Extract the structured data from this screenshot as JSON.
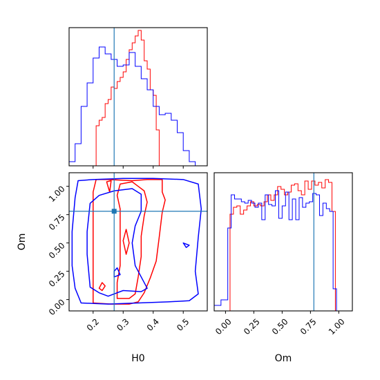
{
  "chart_data": {
    "type": "corner",
    "parameters": [
      "H0",
      "Om"
    ],
    "xlabel_H0": "H0",
    "xlabel_Om": "Om",
    "ylabel_Om": "Om",
    "truth": {
      "H0": 0.27,
      "Om": 0.78,
      "color": "#1f77b4"
    },
    "series": [
      {
        "color": "#ff0000"
      },
      {
        "color": "#0000ff"
      }
    ],
    "axes": {
      "H0": {
        "range": [
          0.12,
          0.58
        ],
        "ticks": [
          0.2,
          0.3,
          0.4,
          0.5
        ],
        "tick_labels": [
          "0.2",
          "0.3",
          "0.4",
          "0.5"
        ]
      },
      "Om_y": {
        "range": [
          -0.1,
          1.12
        ],
        "ticks": [
          0.0,
          0.25,
          0.5,
          0.75,
          1.0
        ],
        "tick_labels": [
          "0.00",
          "0.25",
          "0.50",
          "0.75",
          "1.00"
        ]
      },
      "Om_x": {
        "range": [
          -0.1,
          1.12
        ],
        "ticks": [
          0.0,
          0.25,
          0.5,
          0.75,
          1.0
        ],
        "tick_labels": [
          "0.00",
          "0.25",
          "0.50",
          "0.75",
          "1.00"
        ]
      }
    },
    "hist_H0": {
      "ymax": 1.0,
      "red": {
        "edges": [
          0.19,
          0.21,
          0.22,
          0.23,
          0.24,
          0.25,
          0.26,
          0.27,
          0.28,
          0.29,
          0.3,
          0.31,
          0.32,
          0.33,
          0.34,
          0.35,
          0.36,
          0.37,
          0.38,
          0.39,
          0.4,
          0.41,
          0.42,
          0.43,
          0.44
        ],
        "values": [
          0.0,
          0.29,
          0.33,
          0.35,
          0.45,
          0.48,
          0.57,
          0.56,
          0.61,
          0.64,
          0.68,
          0.77,
          0.84,
          0.89,
          0.94,
          0.98,
          0.91,
          0.76,
          0.7,
          0.55,
          0.51,
          0.26,
          0.0,
          0.0
        ]
      },
      "blue": {
        "edges": [
          0.12,
          0.14,
          0.16,
          0.18,
          0.2,
          0.22,
          0.24,
          0.26,
          0.28,
          0.3,
          0.32,
          0.34,
          0.36,
          0.38,
          0.4,
          0.42,
          0.44,
          0.46,
          0.48,
          0.5,
          0.52,
          0.54,
          0.56,
          0.58
        ],
        "values": [
          0.03,
          0.16,
          0.43,
          0.6,
          0.78,
          0.86,
          0.81,
          0.77,
          0.72,
          0.73,
          0.82,
          0.72,
          0.63,
          0.55,
          0.43,
          0.37,
          0.38,
          0.33,
          0.24,
          0.11,
          0.03,
          0.0,
          0.0
        ]
      }
    },
    "hist_Om": {
      "ymax": 1.0,
      "red": {
        "edges": [
          0.04,
          0.07,
          0.1,
          0.13,
          0.16,
          0.19,
          0.22,
          0.25,
          0.28,
          0.31,
          0.34,
          0.37,
          0.4,
          0.43,
          0.46,
          0.49,
          0.52,
          0.55,
          0.58,
          0.61,
          0.64,
          0.67,
          0.7,
          0.73,
          0.76,
          0.79,
          0.82,
          0.85,
          0.88,
          0.91,
          0.94,
          0.97,
          1.0
        ],
        "values": [
          0.7,
          0.75,
          0.76,
          0.7,
          0.73,
          0.76,
          0.79,
          0.76,
          0.77,
          0.76,
          0.79,
          0.84,
          0.8,
          0.84,
          0.9,
          0.88,
          0.84,
          0.86,
          0.91,
          0.92,
          0.87,
          0.84,
          0.94,
          0.88,
          0.94,
          0.91,
          0.93,
          0.89,
          0.95,
          0.93,
          0.72,
          0.0
        ]
      },
      "blue": {
        "edges": [
          -0.1,
          -0.07,
          -0.04,
          -0.01,
          0.02,
          0.05,
          0.08,
          0.11,
          0.14,
          0.17,
          0.2,
          0.23,
          0.26,
          0.29,
          0.32,
          0.35,
          0.38,
          0.41,
          0.44,
          0.47,
          0.5,
          0.53,
          0.56,
          0.59,
          0.62,
          0.65,
          0.68,
          0.71,
          0.74,
          0.77,
          0.8,
          0.83,
          0.86,
          0.89,
          0.92,
          0.95,
          0.98,
          1.01,
          1.04
        ],
        "values": [
          0.04,
          0.04,
          0.08,
          0.08,
          0.6,
          0.84,
          0.81,
          0.81,
          0.79,
          0.78,
          0.8,
          0.78,
          0.75,
          0.78,
          0.66,
          0.84,
          0.77,
          0.76,
          0.87,
          0.67,
          0.76,
          0.86,
          0.66,
          0.81,
          0.66,
          0.82,
          0.75,
          0.78,
          0.79,
          0.85,
          0.84,
          0.69,
          0.78,
          0.74,
          0.72,
          0.16,
          0.0,
          0.0
        ]
      }
    },
    "contours": [
      {
        "series": 0,
        "points": [
          [
            0.2,
            -0.03
          ],
          [
            0.26,
            -0.04
          ],
          [
            0.32,
            -0.04
          ],
          [
            0.35,
            -0.02
          ],
          [
            0.37,
            0.06
          ],
          [
            0.39,
            0.19
          ],
          [
            0.41,
            0.34
          ],
          [
            0.42,
            0.55
          ],
          [
            0.43,
            0.77
          ],
          [
            0.44,
            0.88
          ],
          [
            0.43,
            0.95
          ],
          [
            0.43,
            1.06
          ],
          [
            0.38,
            1.06
          ],
          [
            0.33,
            1.05
          ],
          [
            0.25,
            1.06
          ],
          [
            0.21,
            1.06
          ],
          [
            0.2,
            0.95
          ],
          [
            0.2,
            0.75
          ],
          [
            0.2,
            0.55
          ],
          [
            0.2,
            0.35
          ],
          [
            0.2,
            0.15
          ],
          [
            0.2,
            -0.03
          ]
        ]
      },
      {
        "series": 0,
        "points": [
          [
            0.28,
            0.01
          ],
          [
            0.32,
            0.01
          ],
          [
            0.34,
            0.05
          ],
          [
            0.35,
            0.2
          ],
          [
            0.36,
            0.38
          ],
          [
            0.36,
            0.56
          ],
          [
            0.37,
            0.74
          ],
          [
            0.38,
            0.86
          ],
          [
            0.37,
            0.96
          ],
          [
            0.35,
            1.0
          ],
          [
            0.33,
            1.04
          ],
          [
            0.29,
            1.02
          ],
          [
            0.28,
            0.92
          ],
          [
            0.29,
            0.8
          ],
          [
            0.29,
            0.65
          ],
          [
            0.29,
            0.5
          ],
          [
            0.29,
            0.3
          ],
          [
            0.28,
            0.15
          ],
          [
            0.28,
            0.01
          ]
        ]
      },
      {
        "series": 0,
        "points": [
          [
            0.245,
            1.04
          ],
          [
            0.26,
            1.05
          ],
          [
            0.255,
            0.95
          ],
          [
            0.245,
            1.04
          ]
        ]
      },
      {
        "series": 0,
        "points": [
          [
            0.31,
            0.4
          ],
          [
            0.32,
            0.5
          ],
          [
            0.31,
            0.62
          ],
          [
            0.3,
            0.52
          ],
          [
            0.31,
            0.4
          ]
        ]
      },
      {
        "series": 0,
        "points": [
          [
            0.23,
            0.08
          ],
          [
            0.24,
            0.12
          ],
          [
            0.23,
            0.15
          ],
          [
            0.22,
            0.1
          ],
          [
            0.23,
            0.08
          ]
        ]
      },
      {
        "series": 1,
        "points": [
          [
            0.16,
            -0.03
          ],
          [
            0.25,
            -0.04
          ],
          [
            0.35,
            -0.03
          ],
          [
            0.45,
            -0.02
          ],
          [
            0.52,
            -0.01
          ],
          [
            0.55,
            0.05
          ],
          [
            0.54,
            0.25
          ],
          [
            0.55,
            0.55
          ],
          [
            0.56,
            0.8
          ],
          [
            0.55,
            1.02
          ],
          [
            0.5,
            1.06
          ],
          [
            0.4,
            1.07
          ],
          [
            0.3,
            1.07
          ],
          [
            0.2,
            1.06
          ],
          [
            0.15,
            1.05
          ],
          [
            0.14,
            0.9
          ],
          [
            0.13,
            0.6
          ],
          [
            0.13,
            0.3
          ],
          [
            0.14,
            0.1
          ],
          [
            0.16,
            -0.03
          ]
        ]
      },
      {
        "series": 1,
        "points": [
          [
            0.19,
            0.11
          ],
          [
            0.22,
            0.06
          ],
          [
            0.25,
            0.03
          ],
          [
            0.3,
            0.08
          ],
          [
            0.36,
            0.07
          ],
          [
            0.38,
            0.1
          ],
          [
            0.34,
            0.3
          ],
          [
            0.33,
            0.5
          ],
          [
            0.34,
            0.65
          ],
          [
            0.36,
            0.78
          ],
          [
            0.36,
            0.93
          ],
          [
            0.33,
            0.98
          ],
          [
            0.27,
            0.96
          ],
          [
            0.22,
            0.92
          ],
          [
            0.19,
            0.85
          ],
          [
            0.18,
            0.6
          ],
          [
            0.18,
            0.4
          ],
          [
            0.19,
            0.11
          ]
        ]
      },
      {
        "series": 1,
        "points": [
          [
            0.27,
            0.2
          ],
          [
            0.29,
            0.22
          ],
          [
            0.28,
            0.28
          ],
          [
            0.27,
            0.25
          ],
          [
            0.27,
            0.2
          ]
        ]
      },
      {
        "series": 1,
        "points": [
          [
            0.5,
            0.5
          ],
          [
            0.52,
            0.48
          ],
          [
            0.51,
            0.46
          ],
          [
            0.5,
            0.5
          ]
        ]
      }
    ]
  }
}
